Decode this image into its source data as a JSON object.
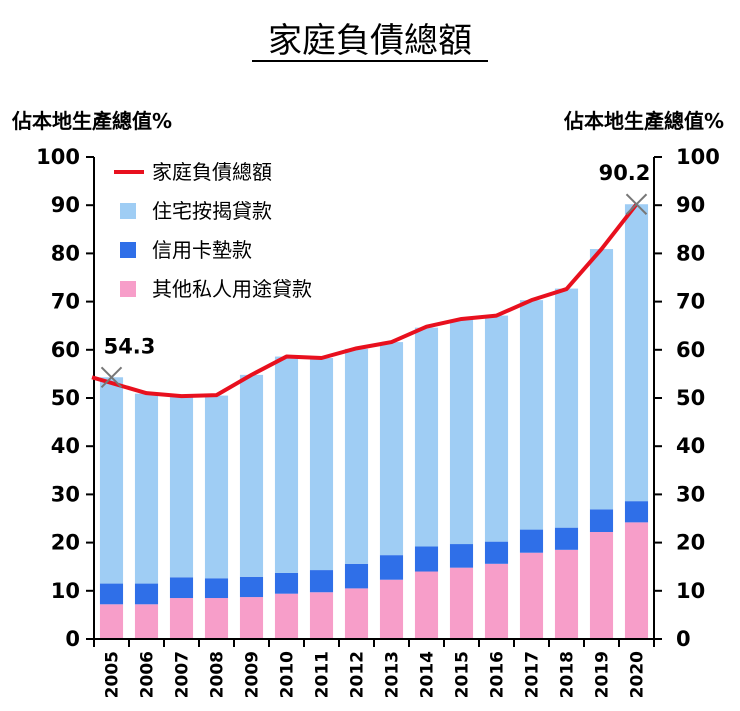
{
  "chart_data": {
    "type": "bar",
    "title": "家庭負債總額",
    "ylabel_left": "佔本地生產總值%",
    "ylabel_right": "佔本地生產總值%",
    "ylim": [
      0,
      100
    ],
    "yticks": [
      0,
      10,
      20,
      30,
      40,
      50,
      60,
      70,
      80,
      90,
      100
    ],
    "categories": [
      "2005",
      "2006",
      "2007",
      "2008",
      "2009",
      "2010",
      "2011",
      "2012",
      "2013",
      "2014",
      "2015",
      "2016",
      "2017",
      "2018",
      "2019",
      "2020"
    ],
    "series": [
      {
        "name": "其他私人用途貸款",
        "kind": "bar",
        "color": "#f79ec9",
        "values": [
          7.2,
          7.2,
          8.5,
          8.5,
          8.7,
          9.4,
          9.7,
          10.5,
          12.3,
          14.0,
          14.8,
          15.6,
          17.9,
          18.5,
          22.2,
          24.2
        ]
      },
      {
        "name": "信用卡墊款",
        "kind": "bar",
        "color": "#2f6fe8",
        "values": [
          4.3,
          4.3,
          4.3,
          4.1,
          4.2,
          4.3,
          4.6,
          5.1,
          5.1,
          5.2,
          4.9,
          4.6,
          4.8,
          4.6,
          4.7,
          4.4
        ]
      },
      {
        "name": "住宅按揭貸款",
        "kind": "bar",
        "color": "#9fcdf4",
        "values": [
          42.8,
          39.4,
          37.6,
          37.9,
          41.9,
          44.9,
          44.0,
          44.6,
          44.2,
          45.4,
          46.6,
          46.9,
          47.6,
          49.6,
          54.0,
          61.6
        ]
      },
      {
        "name": "家庭負債總額",
        "kind": "line",
        "color": "#e8101e",
        "values": [
          54.3,
          51.0,
          50.4,
          50.6,
          54.8,
          58.6,
          58.3,
          60.3,
          61.6,
          64.8,
          66.4,
          67.1,
          70.3,
          72.6,
          80.9,
          90.2
        ]
      }
    ],
    "legend_order": [
      "家庭負債總額",
      "住宅按揭貸款",
      "信用卡墊款",
      "其他私人用途貸款"
    ],
    "annotations": [
      {
        "category": "2005",
        "value": 54.3,
        "label": "54.3"
      },
      {
        "category": "2020",
        "value": 90.2,
        "label": "90.2"
      }
    ]
  }
}
